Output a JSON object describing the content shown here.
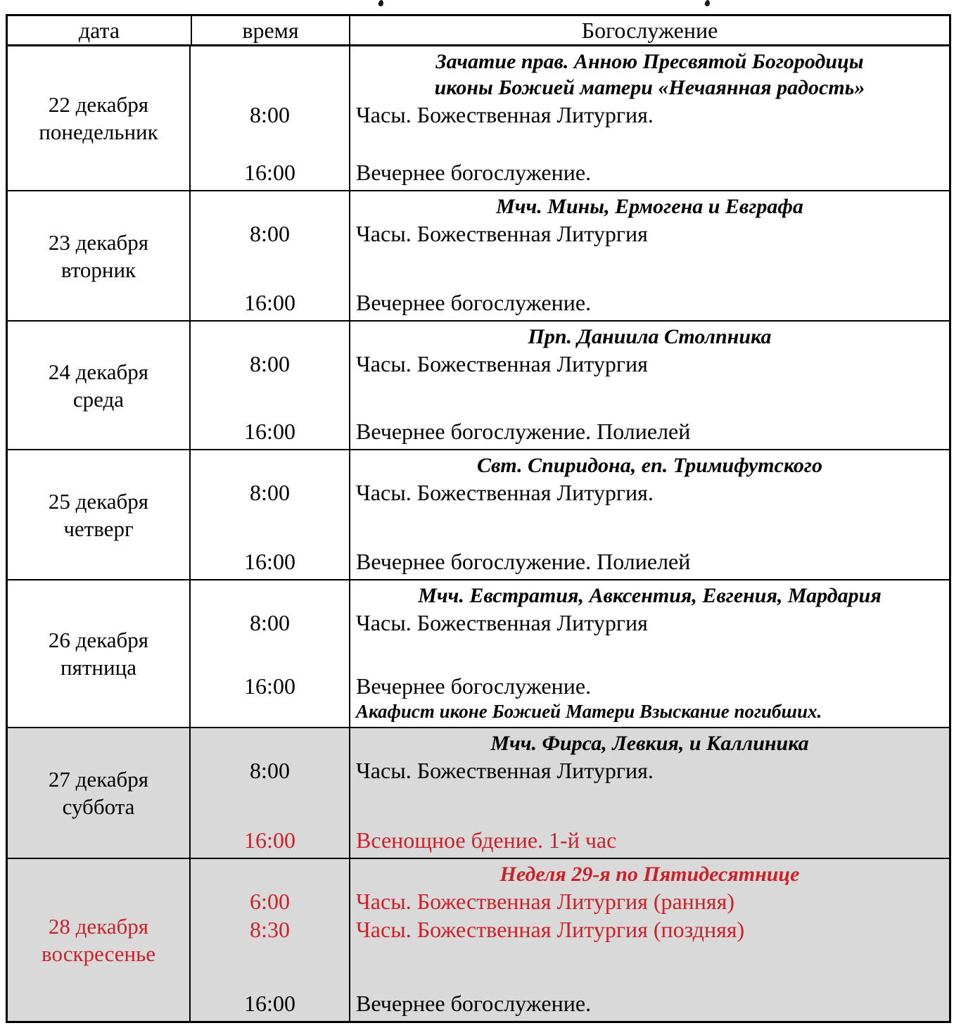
{
  "colors": {
    "accent_red": "#cc2128",
    "row_highlight_gray": "#d9d9d9",
    "table_border": "#000000",
    "page_background": "#ffffff"
  },
  "table": {
    "headers": {
      "date": "дата",
      "time": "время",
      "service": "Богослужение"
    },
    "rows": [
      {
        "date": "22 декабря",
        "weekday": "понедельник",
        "feasts": [
          "Зачатие прав. Анною Пресвятой Богородицы",
          "иконы Божией матери «Нечаянная радость»"
        ],
        "services": [
          {
            "time": "8:00",
            "text": "Часы. Божественная Литургия."
          },
          {
            "time": "16:00",
            "text": "Вечернее богослужение."
          }
        ]
      },
      {
        "date": "23 декабря",
        "weekday": "вторник",
        "feasts": [
          "Мчч. Мины, Ермогена и Евграфа"
        ],
        "services": [
          {
            "time": "8:00",
            "text": "Часы. Божественная Литургия"
          },
          {
            "time": "16:00",
            "text": "Вечернее богослужение."
          }
        ]
      },
      {
        "date": "24 декабря",
        "weekday": "среда",
        "feasts": [
          "Прп. Даниила Столпника"
        ],
        "services": [
          {
            "time": "8:00",
            "text": "Часы. Божественная Литургия"
          },
          {
            "time": "16:00",
            "text": "Вечернее богослужение. Полиелей"
          }
        ]
      },
      {
        "date": "25 декабря",
        "weekday": "четверг",
        "feasts": [
          "Свт. Спиридона, еп. Тримифутского"
        ],
        "services": [
          {
            "time": "8:00",
            "text": "Часы. Божественная Литургия."
          },
          {
            "time": "16:00",
            "text": "Вечернее богослужение. Полиелей"
          }
        ]
      },
      {
        "date": "26 декабря",
        "weekday": "пятница",
        "feasts": [
          "Мчч. Евстратия, Авксентия, Евгения, Мардария"
        ],
        "services": [
          {
            "time": "8:00",
            "text": "Часы. Божественная Литургия"
          },
          {
            "time": "16:00",
            "text": "Вечернее богослужение."
          }
        ],
        "note": "Акафист иконе Божией Матери Взыскание погибших."
      },
      {
        "date": "27 декабря",
        "weekday": "суббота",
        "highlighted": true,
        "feasts": [
          "Мчч. Фирса, Левкия, и Каллиника"
        ],
        "services": [
          {
            "time": "8:00",
            "text": "Часы. Божественная Литургия.",
            "red": false
          },
          {
            "time": "16:00",
            "text": "Всенощное бдение. 1-й час",
            "red": true
          }
        ]
      },
      {
        "date": "28 декабря",
        "weekday": "воскресенье",
        "highlighted": true,
        "date_red": true,
        "feast_red": true,
        "feasts": [
          "Неделя 29-я по Пятидесятнице"
        ],
        "services": [
          {
            "time": "6:00",
            "text": "Часы. Божественная Литургия (ранняя)",
            "red": true
          },
          {
            "time": "8:30",
            "text": "Часы. Божественная Литургия (поздняя)",
            "red": true
          },
          {
            "time": "16:00",
            "text": "Вечернее богослужение.",
            "red": false
          }
        ]
      }
    ]
  }
}
